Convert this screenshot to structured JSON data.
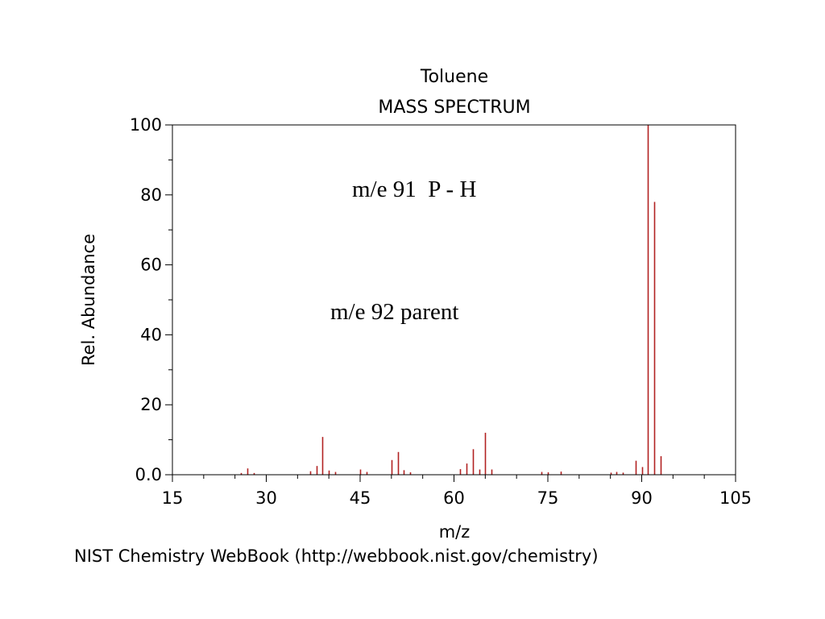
{
  "chart_data": {
    "type": "bar",
    "title": "Toluene",
    "subtitle": "MASS SPECTRUM",
    "xlabel": "m/z",
    "ylabel": "Rel. Abundance",
    "xlim": [
      15,
      105
    ],
    "ylim": [
      0,
      100
    ],
    "x_ticks": [
      "15",
      "30",
      "45",
      "60",
      "75",
      "90",
      "105"
    ],
    "y_ticks": [
      "0.0",
      "20",
      "40",
      "60",
      "80",
      "100"
    ],
    "grid": false,
    "bar_color": "#b22222",
    "series": [
      {
        "x": [
          26,
          27,
          28,
          37,
          38,
          39,
          40,
          41,
          45,
          46,
          50,
          51,
          52,
          53,
          61,
          62,
          63,
          64,
          65,
          66,
          74,
          75,
          77,
          85,
          86,
          87,
          89,
          90,
          91,
          92,
          93
        ],
        "values": [
          0.5,
          1.8,
          0.5,
          1.0,
          2.5,
          10.8,
          1.2,
          0.8,
          1.5,
          0.8,
          4.2,
          6.5,
          1.3,
          0.7,
          1.6,
          3.2,
          7.3,
          1.5,
          12.0,
          1.5,
          0.8,
          0.7,
          0.9,
          0.6,
          0.8,
          0.6,
          4.0,
          2.2,
          100,
          78,
          5.3
        ]
      }
    ],
    "annotations": [
      "m/e 91  P - H",
      "m/e 92 parent"
    ]
  },
  "footer": {
    "credit": "NIST Chemistry WebBook (http://webbook.nist.gov/chemistry)"
  }
}
